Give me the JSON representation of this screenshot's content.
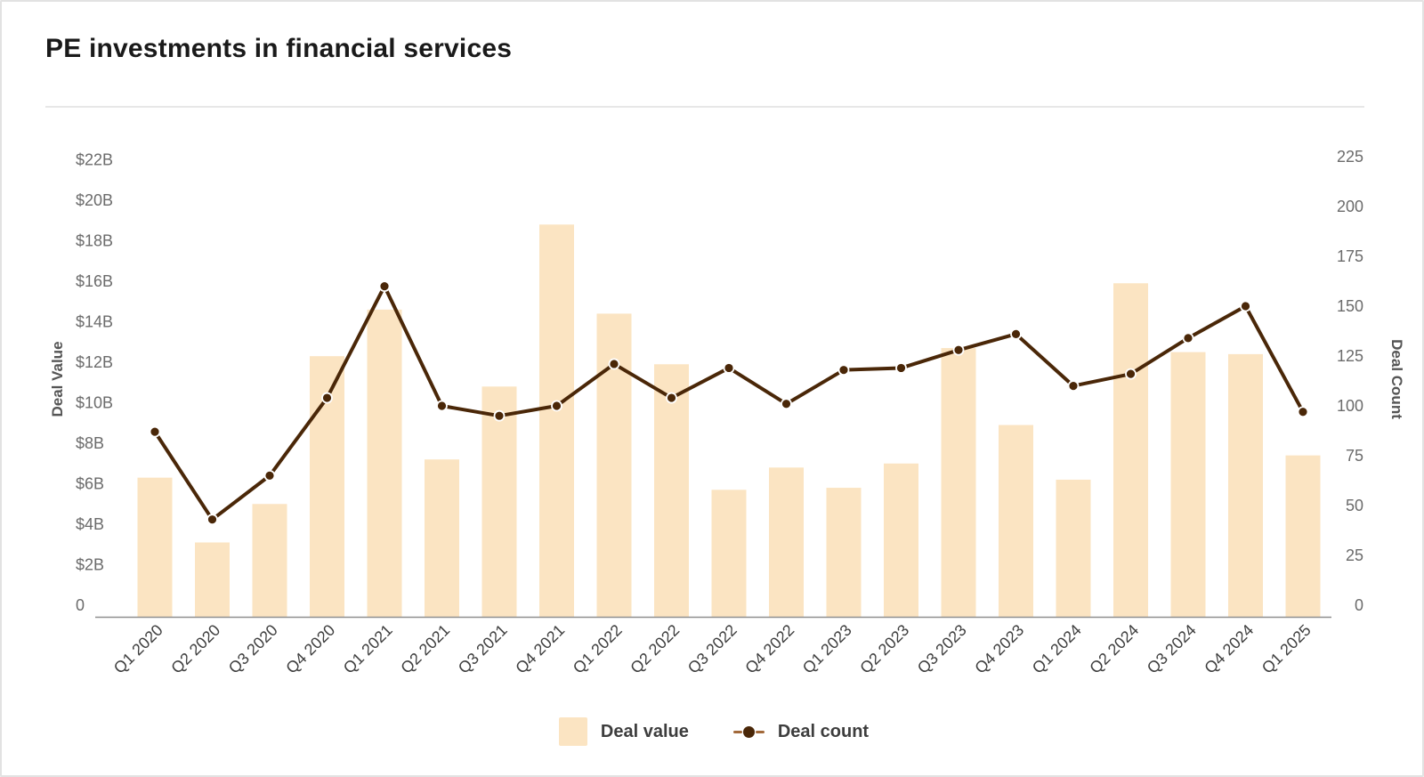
{
  "card": {
    "title": "PE investments in financial services"
  },
  "legend": {
    "items": [
      {
        "label": "Deal value",
        "marker": "bar-swatch"
      },
      {
        "label": "Deal count",
        "marker": "line-dot-marker"
      }
    ]
  },
  "colors": {
    "bar": "#FBE4C2",
    "line": "#4A2708",
    "dot": "#4A2708",
    "dot_ring": "#FFFFFF",
    "legend_dash": "#A2693A",
    "title_text": "#1A1A1A",
    "tick_label": "#6B6B6B",
    "x_label": "#3F3F3F",
    "axis_title": "#555555",
    "axis_line": "#8F8F8F",
    "divider": "#E7E7E7",
    "card_border": "#E2E2E2"
  },
  "chart_data": {
    "type": "bar",
    "subtype": "dual-axis bar + line combo",
    "title": "PE investments in financial services",
    "categories": [
      "Q1 2020",
      "Q2 2020",
      "Q3 2020",
      "Q4 2020",
      "Q1 2021",
      "Q2 2021",
      "Q3 2021",
      "Q4 2021",
      "Q1 2022",
      "Q2 2022",
      "Q3 2022",
      "Q4 2022",
      "Q1 2023",
      "Q2 2023",
      "Q3 2023",
      "Q4 2023",
      "Q1 2024",
      "Q2 2024",
      "Q3 2024",
      "Q4 2024",
      "Q1 2025"
    ],
    "series": [
      {
        "name": "Deal value",
        "type": "bar",
        "axis": "left",
        "unit": "USD billions",
        "values": [
          6.3,
          3.1,
          5.0,
          12.3,
          14.6,
          7.2,
          10.8,
          18.8,
          14.4,
          11.9,
          5.7,
          6.8,
          5.8,
          7.0,
          12.7,
          8.9,
          6.2,
          15.9,
          12.5,
          12.4,
          7.4
        ]
      },
      {
        "name": "Deal count",
        "type": "line",
        "axis": "right",
        "unit": "deals",
        "values": [
          87,
          43,
          65,
          104,
          160,
          100,
          95,
          100,
          121,
          104,
          119,
          101,
          118,
          119,
          128,
          136,
          110,
          116,
          134,
          150,
          97
        ]
      }
    ],
    "left_axis": {
      "label": "Deal Value",
      "range": [
        0,
        22
      ],
      "tick_values": [
        0,
        2,
        4,
        6,
        8,
        10,
        12,
        14,
        16,
        18,
        20,
        22
      ],
      "tick_labels": [
        "0",
        "$2B",
        "$4B",
        "$6B",
        "$8B",
        "$10B",
        "$12B",
        "$14B",
        "$16B",
        "$18B",
        "$20B",
        "$22B"
      ]
    },
    "right_axis": {
      "label": "Deal Count",
      "range": [
        0,
        225
      ],
      "tick_values": [
        0,
        25,
        50,
        75,
        100,
        125,
        150,
        175,
        200,
        225
      ],
      "tick_labels": [
        "0",
        "25",
        "50",
        "75",
        "100",
        "125",
        "150",
        "175",
        "200",
        "225"
      ]
    },
    "x_axis": {
      "label_rotation_deg": -45
    },
    "grid": false,
    "legend_position": "bottom-center"
  }
}
